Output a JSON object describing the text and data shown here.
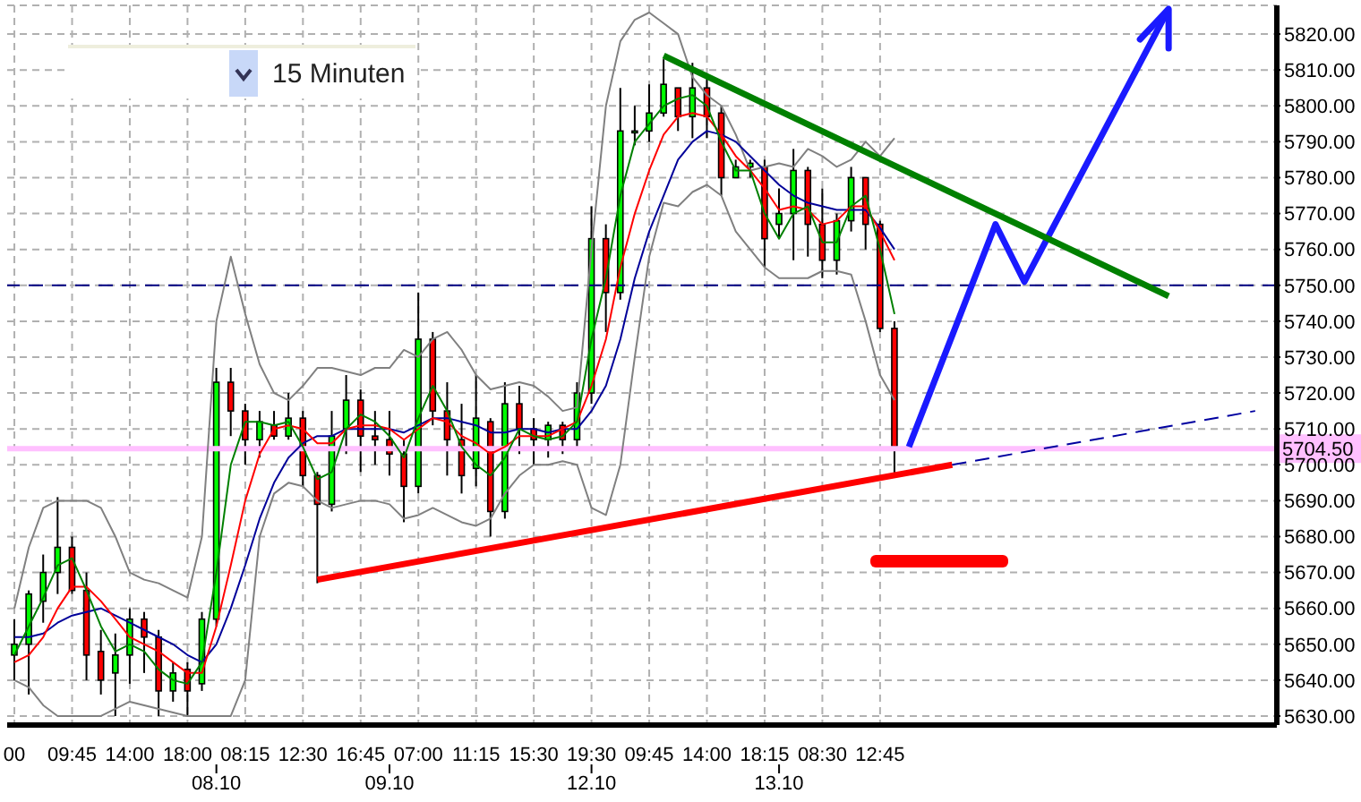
{
  "chart_data": {
    "type": "candlestick",
    "categories": [
      "00",
      null,
      null,
      null,
      "09:45",
      null,
      null,
      null,
      "14:00",
      null,
      null,
      null,
      "18:00",
      null,
      "\n08.10",
      null,
      "08:15",
      null,
      null,
      null,
      "12:30",
      null,
      null,
      null,
      "16:45",
      null,
      "\n09.10",
      null,
      "07:00",
      null,
      null,
      null,
      "11:15",
      null,
      null,
      null,
      "15:30",
      null,
      null,
      null,
      "19:30\n12.10",
      null,
      null,
      null,
      "09:45",
      null,
      null,
      null,
      "14:00",
      null,
      null,
      null,
      "18:15",
      "\n13.10",
      null,
      null,
      "08:30",
      null,
      null,
      null,
      "12:45",
      null,
      null,
      null,
      null,
      null,
      null,
      null,
      null,
      null,
      null,
      null,
      null,
      null,
      null,
      null,
      null,
      null,
      null,
      null,
      null,
      null,
      null,
      null,
      null,
      null,
      null,
      null
    ],
    "ohlc": [
      [
        5647,
        5657,
        5640,
        5650
      ],
      [
        5650,
        5665,
        5636,
        5664
      ],
      [
        5662,
        5675,
        5656,
        5670
      ],
      [
        5670,
        5691,
        5664,
        5677
      ],
      [
        5677,
        5680,
        5664,
        5665
      ],
      [
        5665,
        5670,
        5640,
        5647
      ],
      [
        5648,
        5654,
        5636,
        5640
      ],
      [
        5642,
        5653,
        5630,
        5647
      ],
      [
        5647,
        5660,
        5639,
        5657
      ],
      [
        5657,
        5659,
        5642,
        5652
      ],
      [
        5652,
        5654,
        5630,
        5637
      ],
      [
        5637,
        5645,
        5634,
        5642
      ],
      [
        5643,
        5645,
        5630,
        5637
      ],
      [
        5639,
        5659,
        5637,
        5657
      ],
      [
        5657,
        5727,
        5655,
        5723
      ],
      [
        5723,
        5727,
        5708,
        5715
      ],
      [
        5715,
        5717,
        5700,
        5707
      ],
      [
        5707,
        5715,
        5702,
        5712
      ],
      [
        5711,
        5715,
        5707,
        5708
      ],
      [
        5708,
        5720,
        5707,
        5713
      ],
      [
        5713,
        5715,
        5694,
        5697
      ],
      [
        5697,
        5698,
        5667,
        5689
      ],
      [
        5689,
        5715,
        5687,
        5708
      ],
      [
        5710,
        5725,
        5703,
        5718
      ],
      [
        5718,
        5721,
        5698,
        5708
      ],
      [
        5708,
        5715,
        5700,
        5707
      ],
      [
        5707,
        5715,
        5697,
        5703
      ],
      [
        5703,
        5707,
        5684,
        5694
      ],
      [
        5694,
        5748,
        5692,
        5735
      ],
      [
        5735,
        5737,
        5711,
        5715
      ],
      [
        5715,
        5723,
        5697,
        5707
      ],
      [
        5707,
        5717,
        5692,
        5697
      ],
      [
        5699,
        5725,
        5694,
        5713
      ],
      [
        5712,
        5713,
        5680,
        5687
      ],
      [
        5687,
        5723,
        5685,
        5717
      ],
      [
        5717,
        5722,
        5703,
        5710
      ],
      [
        5710,
        5713,
        5700,
        5707
      ],
      [
        5707,
        5712,
        5702,
        5711
      ],
      [
        5711,
        5712,
        5703,
        5707
      ],
      [
        5707,
        5723,
        5704,
        5720
      ],
      [
        5720,
        5772,
        5717,
        5763
      ],
      [
        5763,
        5767,
        5737,
        5748
      ],
      [
        5748,
        5805,
        5746,
        5793
      ],
      [
        5793,
        5800,
        5789,
        5793
      ],
      [
        5793,
        5806,
        5790,
        5798
      ],
      [
        5798,
        5813,
        5797,
        5806
      ],
      [
        5805,
        5805,
        5793,
        5797
      ],
      [
        5797,
        5812,
        5791,
        5805
      ],
      [
        5805,
        5808,
        5791,
        5797
      ],
      [
        5798,
        5800,
        5775,
        5780
      ],
      [
        5780,
        5785,
        5780,
        5783
      ],
      [
        5783,
        5785,
        5780,
        5784
      ],
      [
        5783,
        5785,
        5755,
        5763
      ],
      [
        5767,
        5777,
        5763,
        5770
      ],
      [
        5770,
        5788,
        5757,
        5782
      ],
      [
        5782,
        5783,
        5758,
        5767
      ],
      [
        5767,
        5777,
        5752,
        5757
      ],
      [
        5757,
        5770,
        5753,
        5768
      ],
      [
        5768,
        5783,
        5765,
        5780
      ],
      [
        5780,
        5780,
        5760,
        5767
      ],
      [
        5767,
        5768,
        5737,
        5738
      ],
      [
        5738,
        5740,
        5697,
        5705
      ],
      null,
      null,
      null,
      null,
      null,
      null,
      null,
      null,
      null,
      null,
      null,
      null,
      null,
      null,
      null,
      null,
      null,
      null,
      null,
      null,
      null,
      null,
      null,
      null,
      null,
      null
    ],
    "series": [
      {
        "type": "line",
        "color": "#808080",
        "values": [
          5660,
          5677,
          5688,
          5690,
          5690,
          5690,
          5688,
          5680,
          5670,
          5668,
          5667,
          5665,
          5663,
          5680,
          5740,
          5758,
          5742,
          5728,
          5720,
          5718,
          5722,
          5727,
          5727,
          5726,
          5725,
          5727,
          5727,
          5732,
          5730,
          5735,
          5737,
          5732,
          5725,
          5721,
          5722,
          5723,
          5722,
          5719,
          5715,
          5716,
          5760,
          5800,
          5818,
          5824,
          5826,
          5823,
          5820,
          5808,
          5803,
          5800,
          5792,
          5782,
          5783,
          5784,
          5783,
          5788,
          5786,
          5783,
          5785,
          5790,
          5786,
          5791,
          null,
          null,
          null,
          null,
          null,
          null,
          null,
          null,
          null,
          null,
          null,
          null,
          null,
          null,
          null,
          null,
          null,
          null,
          null,
          null,
          null,
          null,
          null,
          null,
          null,
          null
        ]
      },
      {
        "type": "line",
        "color": "#808080",
        "values": [
          5640,
          5638,
          5633,
          5630,
          5630,
          5630,
          5630,
          5632,
          5634,
          5633,
          5632,
          5631,
          5630,
          5630,
          5630,
          5630,
          5640,
          5680,
          5692,
          5695,
          5694,
          5690,
          5688,
          5689,
          5690,
          5690,
          5689,
          5685,
          5686,
          5688,
          5686,
          5684,
          5683,
          5685,
          5692,
          5697,
          5700,
          5700,
          5701,
          5700,
          5688,
          5686,
          5700,
          5730,
          5758,
          5773,
          5772,
          5776,
          5778,
          5775,
          5765,
          5760,
          5755,
          5752,
          5752,
          5752,
          5754,
          5754,
          5753,
          5740,
          5725,
          5718,
          null,
          null,
          null,
          null,
          null,
          null,
          null,
          null,
          null,
          null,
          null,
          null,
          null,
          null,
          null,
          null,
          null,
          null,
          null,
          null,
          null,
          null,
          null,
          null,
          null,
          null
        ]
      },
      {
        "type": "line",
        "color": "#000099",
        "values": [
          5652,
          5652,
          5653,
          5656,
          5658,
          5659,
          5660,
          5658,
          5656,
          5654,
          5652,
          5650,
          5647,
          5645,
          5650,
          5660,
          5672,
          5685,
          5695,
          5702,
          5706,
          5708,
          5708,
          5710,
          5710,
          5710,
          5710,
          5709,
          5711,
          5713,
          5713,
          5712,
          5711,
          5709,
          5709,
          5710,
          5710,
          5709,
          5710,
          5710,
          5715,
          5722,
          5735,
          5752,
          5765,
          5775,
          5785,
          5790,
          5793,
          5792,
          5790,
          5786,
          5782,
          5778,
          5775,
          5773,
          5772,
          5771,
          5771,
          5771,
          5766,
          5760,
          null,
          null,
          null,
          null,
          null,
          null,
          null,
          null,
          null,
          null,
          null,
          null,
          null,
          null,
          null,
          null,
          null,
          null,
          null,
          null,
          null,
          null,
          null,
          null,
          null,
          null
        ]
      },
      {
        "type": "line",
        "color": "#ff0000",
        "values": [
          5645,
          5647,
          5652,
          5660,
          5666,
          5666,
          5662,
          5657,
          5652,
          5650,
          5648,
          5645,
          5642,
          5642,
          5655,
          5672,
          5690,
          5703,
          5710,
          5711,
          5710,
          5706,
          5706,
          5710,
          5711,
          5711,
          5710,
          5707,
          5710,
          5713,
          5712,
          5708,
          5706,
          5703,
          5705,
          5708,
          5708,
          5708,
          5710,
          5712,
          5722,
          5735,
          5755,
          5770,
          5782,
          5792,
          5797,
          5798,
          5797,
          5792,
          5786,
          5782,
          5777,
          5771,
          5772,
          5771,
          5767,
          5768,
          5772,
          5772,
          5765,
          5757,
          null,
          null,
          null,
          null,
          null,
          null,
          null,
          null,
          null,
          null,
          null,
          null,
          null,
          null,
          null,
          null,
          null,
          null,
          null,
          null,
          null,
          null,
          null,
          null,
          null,
          null
        ]
      },
      {
        "type": "line",
        "color": "#008000",
        "values": [
          5647,
          5655,
          5663,
          5672,
          5674,
          5665,
          5655,
          5648,
          5650,
          5648,
          5643,
          5640,
          5639,
          5645,
          5670,
          5700,
          5712,
          5712,
          5711,
          5712,
          5705,
          5696,
          5698,
          5710,
          5714,
          5712,
          5708,
          5702,
          5713,
          5722,
          5715,
          5705,
          5700,
          5697,
          5702,
          5710,
          5708,
          5707,
          5708,
          5712,
          5735,
          5752,
          5775,
          5790,
          5795,
          5800,
          5802,
          5803,
          5800,
          5790,
          5782,
          5782,
          5770,
          5763,
          5770,
          5772,
          5762,
          5762,
          5772,
          5775,
          5760,
          5742,
          null,
          null,
          null,
          null,
          null,
          null,
          null,
          null,
          null,
          null,
          null,
          null,
          null,
          null,
          null,
          null,
          null,
          null,
          null,
          null,
          null,
          null,
          null,
          null,
          null,
          null
        ]
      },
      {
        "type": "line",
        "color": "#ff0000",
        "values": [
          null,
          null,
          null,
          null,
          null,
          null,
          null,
          null,
          null,
          null,
          null,
          null,
          null,
          null,
          null,
          null,
          null,
          null,
          null,
          null,
          null,
          5668,
          null,
          null,
          null,
          null,
          null,
          null,
          null,
          null,
          null,
          null,
          null,
          null,
          null,
          null,
          null,
          null,
          null,
          null,
          null,
          null,
          null,
          null,
          null,
          null,
          null,
          null,
          null,
          null,
          null,
          null,
          null,
          null,
          null,
          null,
          null,
          null,
          null,
          null,
          null,
          null,
          null,
          null,
          null,
          5700,
          null,
          null,
          null,
          null,
          null,
          null,
          null,
          null,
          null,
          null,
          null,
          null,
          null,
          null,
          null,
          null,
          null,
          null,
          null,
          null,
          null,
          null
        ]
      },
      {
        "type": "line",
        "color": "#0000a0",
        "line_style": "dashed",
        "values": [
          null,
          null,
          null,
          null,
          null,
          null,
          null,
          null,
          null,
          null,
          null,
          null,
          null,
          null,
          null,
          null,
          null,
          null,
          null,
          null,
          null,
          null,
          null,
          null,
          null,
          null,
          null,
          null,
          null,
          null,
          null,
          null,
          null,
          null,
          null,
          null,
          null,
          null,
          null,
          null,
          null,
          null,
          null,
          null,
          null,
          null,
          null,
          null,
          null,
          null,
          null,
          null,
          null,
          null,
          null,
          null,
          null,
          null,
          null,
          null,
          null,
          null,
          null,
          null,
          null,
          5700,
          null,
          null,
          null,
          null,
          null,
          null,
          null,
          null,
          null,
          null,
          null,
          null,
          null,
          null,
          null,
          null,
          null,
          null,
          null,
          null,
          5715,
          null
        ]
      },
      {
        "type": "line",
        "color": "#1a1aff",
        "values": [
          null,
          null,
          null,
          null,
          null,
          null,
          null,
          null,
          null,
          null,
          null,
          null,
          null,
          null,
          null,
          null,
          null,
          null,
          null,
          null,
          null,
          null,
          null,
          null,
          null,
          null,
          null,
          null,
          null,
          null,
          null,
          null,
          null,
          null,
          null,
          null,
          null,
          null,
          null,
          null,
          null,
          null,
          null,
          null,
          null,
          null,
          null,
          null,
          null,
          null,
          null,
          null,
          null,
          null,
          null,
          null,
          null,
          null,
          null,
          null,
          null,
          null,
          5705,
          null,
          null,
          null,
          null,
          null,
          5767,
          null,
          5751,
          null,
          null,
          null,
          null,
          null,
          null,
          null,
          null,
          null,
          5827,
          null,
          null,
          null,
          null,
          null,
          null,
          null
        ]
      },
      {
        "type": "line",
        "color": "#008000",
        "values": [
          null,
          null,
          null,
          null,
          null,
          null,
          null,
          null,
          null,
          null,
          null,
          null,
          null,
          null,
          null,
          null,
          null,
          null,
          null,
          null,
          null,
          null,
          null,
          null,
          null,
          null,
          null,
          null,
          null,
          null,
          null,
          null,
          null,
          null,
          null,
          null,
          null,
          null,
          null,
          null,
          null,
          null,
          null,
          null,
          null,
          5814,
          null,
          null,
          null,
          null,
          null,
          null,
          null,
          null,
          null,
          null,
          null,
          null,
          null,
          null,
          null,
          null,
          null,
          null,
          null,
          null,
          null,
          null,
          null,
          null,
          null,
          null,
          null,
          null,
          null,
          null,
          null,
          null,
          null,
          null,
          5747,
          null,
          null,
          null,
          null,
          null,
          null,
          null
        ]
      }
    ],
    "ylim": [
      5627.5,
      5828
    ],
    "yticks": [
      {
        "value": 5630,
        "label": "5630.00"
      },
      {
        "value": 5640,
        "label": "5640.00"
      },
      {
        "value": 5650,
        "label": "5650.00"
      },
      {
        "value": 5660,
        "label": "5660.00"
      },
      {
        "value": 5670,
        "label": "5670.00"
      },
      {
        "value": 5680,
        "label": "5680.00"
      },
      {
        "value": 5690,
        "label": "5690.00"
      },
      {
        "value": 5700,
        "label": "5700.00"
      },
      {
        "value": 5710,
        "label": "5710.00"
      },
      {
        "value": 5720,
        "label": "5720.00"
      },
      {
        "value": 5730,
        "label": "5730.00"
      },
      {
        "value": 5740,
        "label": "5740.00"
      },
      {
        "value": 5750,
        "label": "5750.00"
      },
      {
        "value": 5760,
        "label": "5760.00"
      },
      {
        "value": 5770,
        "label": "5770.00"
      },
      {
        "value": 5780,
        "label": "5780.00"
      },
      {
        "value": 5790,
        "label": "5790.00"
      },
      {
        "value": 5800,
        "label": "5800.00"
      },
      {
        "value": 5810,
        "label": "5810.00"
      },
      {
        "value": 5820,
        "label": "5820.00"
      }
    ],
    "ref_lines": [
      {
        "axis": "y",
        "value": 5750,
        "color": "#000080",
        "line_style": "dashed"
      },
      {
        "axis": "y",
        "value": 5704.5,
        "label": "5704.50",
        "color": "#ffc0ff"
      }
    ],
    "annotations": [
      "15 Minuten"
    ],
    "legend": false,
    "grid": true
  }
}
